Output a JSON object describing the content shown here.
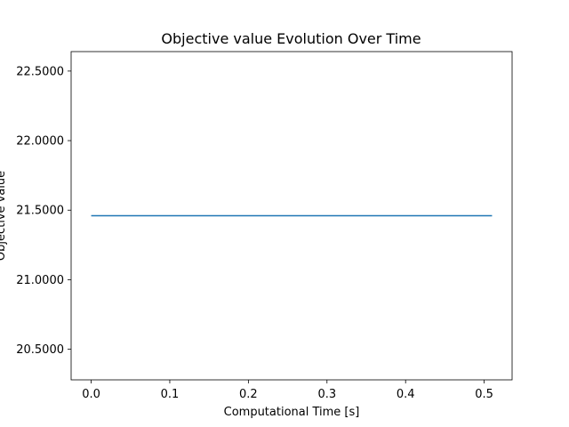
{
  "chart_data": {
    "type": "line",
    "title": "Objective value Evolution Over Time",
    "xlabel": "Computational Time [s]",
    "ylabel": "Objective value",
    "xlim": [
      -0.0255,
      0.5355
    ],
    "ylim": [
      20.28,
      22.64
    ],
    "x_ticks": [
      0.0,
      0.1,
      0.2,
      0.3,
      0.4,
      0.5
    ],
    "x_tick_labels": [
      "0.0",
      "0.1",
      "0.2",
      "0.3",
      "0.4",
      "0.5"
    ],
    "y_ticks": [
      20.5,
      21.0,
      21.5,
      22.0,
      22.5
    ],
    "y_tick_labels": [
      "20.5000",
      "21.0000",
      "21.5000",
      "22.0000",
      "22.5000"
    ],
    "grid": false,
    "legend": "none",
    "series": [
      {
        "color": "#1f77b4",
        "x": [
          0.0,
          0.51
        ],
        "y": [
          21.46,
          21.46
        ]
      }
    ]
  }
}
